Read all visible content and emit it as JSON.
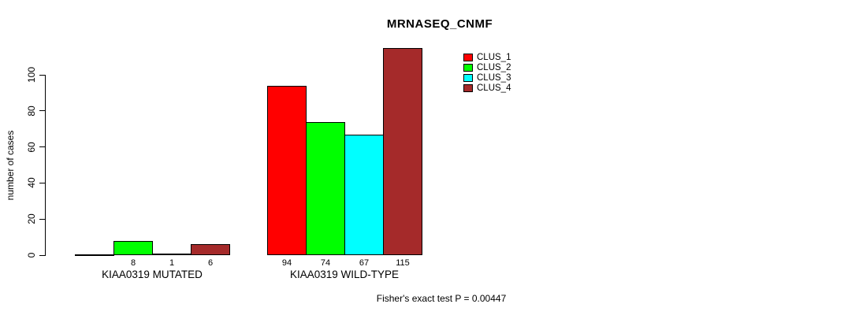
{
  "chart_data": {
    "type": "bar",
    "title": "MRNASEQ_CNMF",
    "ylabel": "number of cases",
    "xlabel": "",
    "ylim": [
      0,
      100
    ],
    "yticks": [
      0,
      20,
      40,
      60,
      80,
      100
    ],
    "grid": false,
    "legend_position": "top-right",
    "categories": [
      "KIAA0319 MUTATED",
      "KIAA0319 WILD-TYPE"
    ],
    "series": [
      {
        "name": "CLUS_1",
        "color": "#FF0000",
        "values": [
          0,
          94
        ]
      },
      {
        "name": "CLUS_2",
        "color": "#00FF00",
        "values": [
          8,
          74
        ]
      },
      {
        "name": "CLUS_3",
        "color": "#00FFFF",
        "values": [
          1,
          67
        ]
      },
      {
        "name": "CLUS_4",
        "color": "#A52A2A",
        "values": [
          6,
          115
        ]
      }
    ],
    "bar_value_labels": [
      [
        "",
        "8",
        "1",
        "6"
      ],
      [
        "94",
        "74",
        "67",
        "115"
      ]
    ],
    "annotation": "Fisher's exact test P = 0.00447"
  }
}
